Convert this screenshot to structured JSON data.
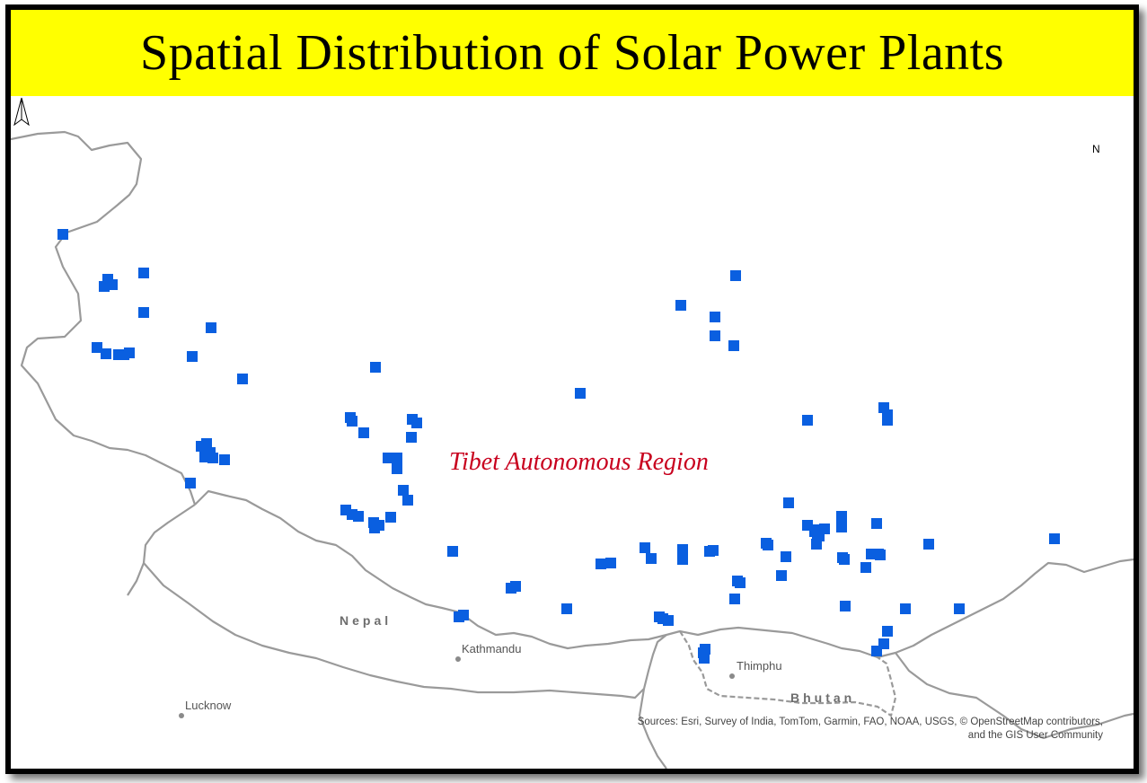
{
  "title": "Spatial Distribution of Solar Power Plants",
  "region_label": "Tibet Autonomous Region",
  "north_label": "N",
  "countries": [
    {
      "name": "Nepal"
    },
    {
      "name": "Bhutan"
    }
  ],
  "cities": [
    {
      "name": "Kathmandu"
    },
    {
      "name": "Thimphu"
    },
    {
      "name": "Lucknow"
    }
  ],
  "attribution": {
    "line1": "Sources: Esri, Survey of India, TomTom, Garmin, FAO, NOAA, USGS, © OpenStreetMap contributors,",
    "line2": "and the GIS User Community"
  },
  "colors": {
    "title_background": "#ffff00",
    "plant_marker": "#0a5fe0",
    "region_label": "#c8001e",
    "boundary": "#9a9a9a"
  },
  "legend_symbol": "solar-plant-square-marker",
  "map_features": {
    "plant_count": 103
  }
}
